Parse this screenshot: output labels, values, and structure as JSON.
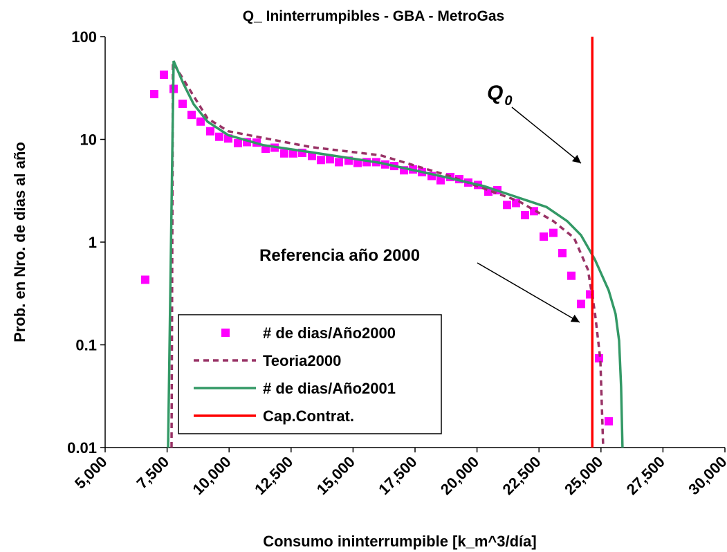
{
  "chart_data": {
    "type": "line",
    "title": "Q_ Ininterrumpibles - GBA - MetroGas",
    "x_label": "Consumo ininterrumpible [k_m^3/día]",
    "y_label": "Prob. en Nro. de dias al año",
    "xlim": [
      5000,
      30000
    ],
    "xticks": [
      {
        "value": 5000,
        "label": "5,000"
      },
      {
        "value": 7500,
        "label": "7,500"
      },
      {
        "value": 10000,
        "label": "10,000"
      },
      {
        "value": 12500,
        "label": "12,500"
      },
      {
        "value": 15000,
        "label": "15,000"
      },
      {
        "value": 17500,
        "label": "17,500"
      },
      {
        "value": 20000,
        "label": "20,000"
      },
      {
        "value": 22500,
        "label": "22,500"
      },
      {
        "value": 25000,
        "label": "25,000"
      },
      {
        "value": 27500,
        "label": "27,500"
      },
      {
        "value": 30000,
        "label": "30,000"
      }
    ],
    "ylim": [
      0.01,
      100
    ],
    "yticks": [
      0.01,
      0.1,
      1,
      10,
      100
    ],
    "ylog": true,
    "legend": "lower left",
    "series": [
      {
        "name": "# de dias/Año2000",
        "style": "markers",
        "color": "#ff00ff",
        "x": [
          6618,
          6981,
          7372,
          7762,
          8125,
          8488,
          8850,
          9241,
          9604,
          9967,
          10357,
          10720,
          11111,
          11473,
          11836,
          12227,
          12589,
          12952,
          13343,
          13705,
          14068,
          14431,
          14821,
          15184,
          15547,
          15937,
          16300,
          16663,
          17054,
          17416,
          17779,
          18170,
          18532,
          18923,
          19286,
          19648,
          20039,
          20458,
          20820,
          21211,
          21574,
          21936,
          22299,
          22690,
          23080,
          23443,
          23806,
          24196,
          24559,
          24922,
          25312
        ],
        "values": [
          0.43,
          27.6,
          42.6,
          31,
          22.2,
          17.3,
          14.9,
          12,
          10.6,
          10.2,
          9.2,
          9.4,
          9.3,
          8.1,
          8.3,
          7.3,
          7.3,
          7.4,
          6.9,
          6.3,
          6.4,
          6,
          6.2,
          5.9,
          6,
          6,
          5.7,
          5.5,
          5,
          5.1,
          4.8,
          4.4,
          4,
          4.3,
          4.1,
          3.8,
          3.6,
          3.1,
          3.2,
          2.3,
          2.4,
          1.83,
          2,
          1.13,
          1.23,
          0.78,
          0.47,
          0.25,
          0.31,
          0.074,
          0.018
        ]
      },
      {
        "name": "Teoria2000",
        "style": "dashed",
        "color": "#993366",
        "x": [
          7678,
          7734,
          9129,
          9966,
          13314,
          16104,
          18894,
          21684,
          23080,
          23916,
          24474,
          24753,
          24976,
          25088
        ],
        "values": [
          0.01,
          56,
          16,
          12,
          8.4,
          7,
          4.4,
          2.5,
          1.6,
          1.1,
          0.54,
          0.21,
          0.072,
          0.01
        ]
      },
      {
        "name": "# de dias/Año2001",
        "style": "solid",
        "color": "#339966",
        "x": [
          7539,
          7762,
          8153,
          8571,
          9129,
          9966,
          11361,
          13314,
          16104,
          18894,
          20289,
          21684,
          22800,
          23637,
          24195,
          24753,
          25032,
          25311,
          25590,
          25730,
          25813,
          25869
        ],
        "values": [
          0.01,
          58,
          35,
          22,
          14.9,
          11,
          8.8,
          7.5,
          5.9,
          4.2,
          3.5,
          2.7,
          2.2,
          1.6,
          1.17,
          0.68,
          0.48,
          0.34,
          0.2,
          0.11,
          0.039,
          0.01
        ]
      },
      {
        "name": "Cap.Contrat.",
        "style": "vline",
        "color": "#ff0000",
        "x": 24650
      }
    ],
    "annotations": [
      {
        "text": "Q",
        "sub": "0"
      },
      {
        "text": "Referencia año 2000"
      }
    ]
  }
}
